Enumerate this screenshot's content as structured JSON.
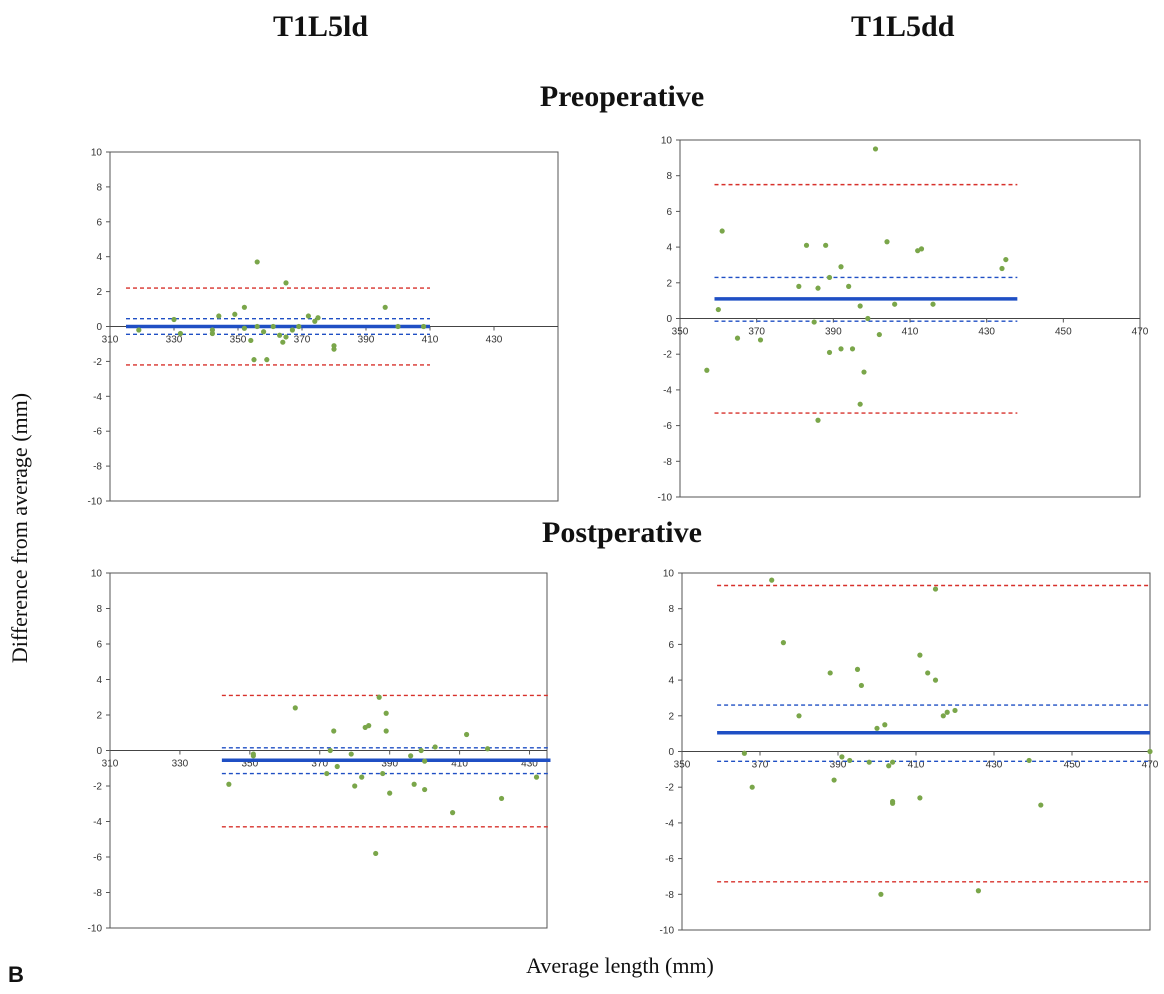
{
  "column_titles": {
    "left": "T1L5ld",
    "right": "T1L5dd"
  },
  "row_titles": {
    "pre": "Preoperative",
    "post": "Postperative"
  },
  "ylabel": "Difference from average (mm)",
  "xlabel": "Average length (mm)",
  "panel_letter": "B",
  "colors": {
    "mean_line": "#1f4fc4",
    "ci_line": "#1f4fc4",
    "loa_line": "#d7312b",
    "points": "#7aa64a"
  },
  "chart_data": [
    {
      "type": "scatter",
      "id": "pre-left",
      "xlim": [
        310,
        450
      ],
      "ylim": [
        -10,
        10
      ],
      "xticks": [
        310,
        330,
        350,
        370,
        390,
        410,
        430
      ],
      "yticks": [
        -10,
        -8,
        -6,
        -4,
        -2,
        0,
        2,
        4,
        6,
        8,
        10
      ],
      "mean": 0.0,
      "ci": [
        -0.45,
        0.45
      ],
      "loa": [
        -2.2,
        2.2
      ],
      "line_range": [
        315,
        410
      ],
      "points": [
        [
          319,
          -0.2
        ],
        [
          330,
          0.4
        ],
        [
          332,
          -0.4
        ],
        [
          342,
          -0.2
        ],
        [
          342,
          -0.4
        ],
        [
          344,
          0.6
        ],
        [
          349,
          0.7
        ],
        [
          352,
          1.1
        ],
        [
          352,
          -0.1
        ],
        [
          354,
          -0.8
        ],
        [
          355,
          -1.9
        ],
        [
          356,
          3.7
        ],
        [
          356,
          0.0
        ],
        [
          358,
          -0.3
        ],
        [
          359,
          -1.9
        ],
        [
          361,
          0.0
        ],
        [
          363,
          -0.5
        ],
        [
          364,
          -0.9
        ],
        [
          365,
          2.5
        ],
        [
          365,
          -0.6
        ],
        [
          367,
          -0.2
        ],
        [
          369,
          0.0
        ],
        [
          372,
          0.6
        ],
        [
          374,
          0.3
        ],
        [
          375,
          0.5
        ],
        [
          380,
          -1.1
        ],
        [
          380,
          -1.3
        ],
        [
          396,
          1.1
        ],
        [
          400,
          0.0
        ],
        [
          408,
          0.0
        ]
      ]
    },
    {
      "type": "scatter",
      "id": "pre-right",
      "xlim": [
        350,
        470
      ],
      "ylim": [
        -10,
        10
      ],
      "xticks": [
        350,
        370,
        390,
        410,
        430,
        450,
        470
      ],
      "yticks": [
        -10,
        -8,
        -6,
        -4,
        -2,
        0,
        2,
        4,
        6,
        8,
        10
      ],
      "mean": 1.1,
      "ci": [
        -0.15,
        2.3
      ],
      "loa": [
        -5.3,
        7.5
      ],
      "line_range": [
        359,
        438
      ],
      "points": [
        [
          357,
          -2.9
        ],
        [
          360,
          0.5
        ],
        [
          361,
          4.9
        ],
        [
          365,
          -1.1
        ],
        [
          371,
          -1.2
        ],
        [
          381,
          1.8
        ],
        [
          383,
          4.1
        ],
        [
          385,
          -0.2
        ],
        [
          386,
          1.7
        ],
        [
          386,
          -5.7
        ],
        [
          388,
          4.1
        ],
        [
          389,
          -1.9
        ],
        [
          389,
          2.3
        ],
        [
          392,
          2.9
        ],
        [
          392,
          -1.7
        ],
        [
          394,
          1.8
        ],
        [
          395,
          -1.7
        ],
        [
          397,
          0.7
        ],
        [
          397,
          -4.8
        ],
        [
          398,
          -3.0
        ],
        [
          399,
          0.0
        ],
        [
          401,
          9.5
        ],
        [
          402,
          -0.9
        ],
        [
          404,
          4.3
        ],
        [
          406,
          0.8
        ],
        [
          412,
          3.8
        ],
        [
          413,
          3.9
        ],
        [
          416,
          0.8
        ],
        [
          434,
          2.8
        ],
        [
          435,
          3.3
        ]
      ]
    },
    {
      "type": "scatter",
      "id": "post-left",
      "xlim": [
        310,
        435
      ],
      "ylim": [
        -10,
        10
      ],
      "xticks": [
        310,
        330,
        350,
        370,
        390,
        410,
        430
      ],
      "yticks": [
        -10,
        -8,
        -6,
        -4,
        -2,
        0,
        2,
        4,
        6,
        8,
        10
      ],
      "mean": -0.55,
      "ci": [
        -1.3,
        0.15
      ],
      "loa": [
        -4.3,
        3.1
      ],
      "line_range": [
        342,
        436
      ],
      "points": [
        [
          344,
          -1.9
        ],
        [
          351,
          -0.2
        ],
        [
          351,
          -0.3
        ],
        [
          363,
          2.4
        ],
        [
          372,
          -1.3
        ],
        [
          373,
          0.0
        ],
        [
          374,
          1.1
        ],
        [
          375,
          -0.9
        ],
        [
          379,
          -0.2
        ],
        [
          380,
          -2.0
        ],
        [
          382,
          -1.5
        ],
        [
          383,
          1.3
        ],
        [
          384,
          1.4
        ],
        [
          386,
          -5.8
        ],
        [
          387,
          3.0
        ],
        [
          388,
          -1.3
        ],
        [
          389,
          2.1
        ],
        [
          389,
          1.1
        ],
        [
          390,
          -2.4
        ],
        [
          396,
          -0.3
        ],
        [
          397,
          -1.9
        ],
        [
          399,
          0.0
        ],
        [
          400,
          -2.2
        ],
        [
          400,
          -0.6
        ],
        [
          403,
          0.2
        ],
        [
          408,
          -3.5
        ],
        [
          412,
          0.9
        ],
        [
          418,
          0.1
        ],
        [
          422,
          -2.7
        ],
        [
          432,
          -1.5
        ]
      ]
    },
    {
      "type": "scatter",
      "id": "post-right",
      "xlim": [
        350,
        470
      ],
      "ylim": [
        -10,
        10
      ],
      "xticks": [
        350,
        370,
        390,
        410,
        430,
        450,
        470
      ],
      "yticks": [
        -10,
        -8,
        -6,
        -4,
        -2,
        0,
        2,
        4,
        6,
        8,
        10
      ],
      "mean": 1.05,
      "ci": [
        -0.55,
        2.6
      ],
      "loa": [
        -7.3,
        9.3
      ],
      "line_range": [
        359,
        470
      ],
      "points": [
        [
          366,
          -0.1
        ],
        [
          368,
          -2.0
        ],
        [
          373,
          9.6
        ],
        [
          376,
          6.1
        ],
        [
          380,
          2.0
        ],
        [
          388,
          4.4
        ],
        [
          389,
          -1.6
        ],
        [
          391,
          -0.3
        ],
        [
          393,
          -0.5
        ],
        [
          395,
          4.6
        ],
        [
          396,
          3.7
        ],
        [
          398,
          -0.6
        ],
        [
          400,
          1.3
        ],
        [
          401,
          -8.0
        ],
        [
          402,
          1.5
        ],
        [
          403,
          -0.8
        ],
        [
          404,
          -2.8
        ],
        [
          404,
          -2.9
        ],
        [
          404,
          -0.6
        ],
        [
          411,
          5.4
        ],
        [
          411,
          -2.6
        ],
        [
          413,
          4.4
        ],
        [
          415,
          4.0
        ],
        [
          415,
          9.1
        ],
        [
          417,
          2.0
        ],
        [
          418,
          2.2
        ],
        [
          420,
          2.3
        ],
        [
          426,
          -7.8
        ],
        [
          439,
          -0.5
        ],
        [
          442,
          -3.0
        ],
        [
          470,
          0.0
        ]
      ]
    }
  ]
}
